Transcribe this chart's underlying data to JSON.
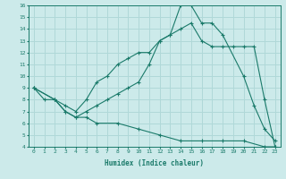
{
  "xlabel": "Humidex (Indice chaleur)",
  "xlim": [
    -0.5,
    23.5
  ],
  "ylim": [
    4,
    16
  ],
  "yticks": [
    4,
    5,
    6,
    7,
    8,
    9,
    10,
    11,
    12,
    13,
    14,
    15,
    16
  ],
  "xticks": [
    0,
    1,
    2,
    3,
    4,
    5,
    6,
    7,
    8,
    9,
    10,
    11,
    12,
    13,
    14,
    15,
    16,
    17,
    18,
    19,
    20,
    21,
    22,
    23
  ],
  "bg_color": "#cceaea",
  "line_color": "#1a7a6a",
  "grid_color": "#b0d8d8",
  "line1_x": [
    0,
    1,
    2,
    3,
    4,
    5,
    6,
    7,
    8,
    9,
    10,
    11,
    12,
    13,
    14,
    15,
    16,
    17,
    18,
    20,
    21,
    22,
    23
  ],
  "line1_y": [
    9,
    8,
    8,
    7,
    6.5,
    7,
    7.5,
    8,
    8.5,
    9,
    9.5,
    11,
    13,
    13.5,
    16,
    16,
    14.5,
    14.5,
    13.5,
    10,
    7.5,
    5.5,
    4.5
  ],
  "line2_x": [
    0,
    2,
    3,
    4,
    5,
    6,
    7,
    8,
    9,
    10,
    11,
    12,
    13,
    14,
    15,
    16,
    17,
    18,
    19,
    20,
    21,
    22,
    23
  ],
  "line2_y": [
    9,
    8,
    7.5,
    7,
    8,
    9.5,
    10,
    11,
    11.5,
    12,
    12,
    13,
    13.5,
    14,
    14.5,
    13,
    12.5,
    12.5,
    12.5,
    12.5,
    12.5,
    8,
    4
  ],
  "line3_x": [
    0,
    2,
    3,
    4,
    5,
    6,
    8,
    10,
    12,
    14,
    16,
    18,
    20,
    22,
    23
  ],
  "line3_y": [
    9,
    8,
    7,
    6.5,
    6.5,
    6,
    6,
    5.5,
    5,
    4.5,
    4.5,
    4.5,
    4.5,
    4,
    4
  ]
}
